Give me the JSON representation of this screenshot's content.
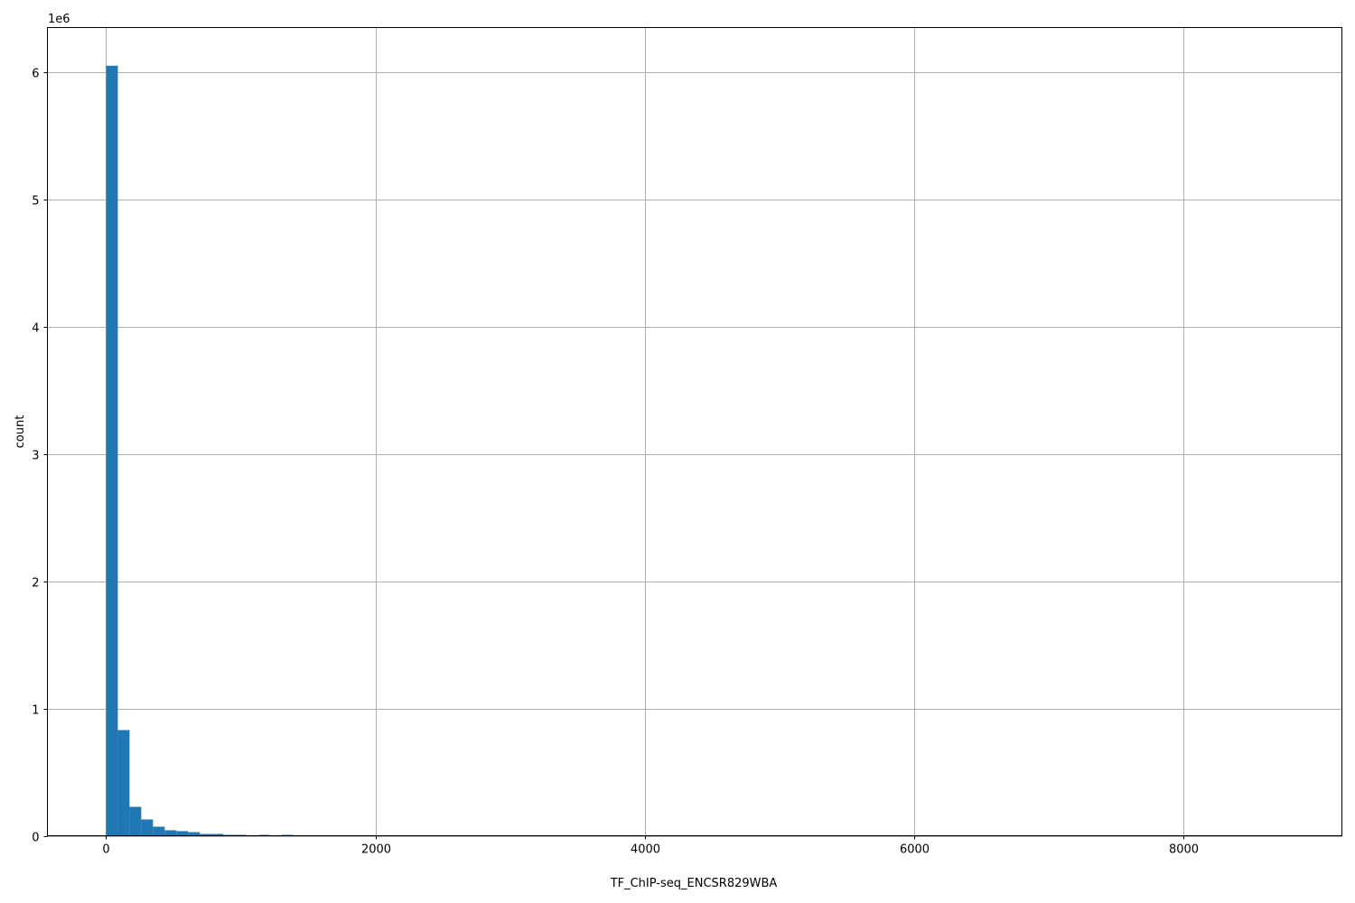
{
  "chart_data": {
    "type": "bar",
    "subtype": "histogram",
    "xlabel": "TF_ChIP-seq_ENCSR829WBA",
    "ylabel": "count",
    "y_offset_text": "1e6",
    "xlim": [
      -436,
      9180
    ],
    "ylim": [
      0,
      6350000
    ],
    "xticks": [
      0,
      2000,
      4000,
      6000,
      8000
    ],
    "yticks": [
      0,
      1,
      2,
      3,
      4,
      5,
      6
    ],
    "grid": true,
    "bar_color": "#1f77b4",
    "bin_width": 87,
    "bin_start": 0,
    "counts": [
      6050000,
      830000,
      227000,
      128000,
      71000,
      43000,
      36000,
      28000,
      14000,
      14000,
      7000,
      7000,
      0,
      7000,
      0,
      7000
    ]
  }
}
